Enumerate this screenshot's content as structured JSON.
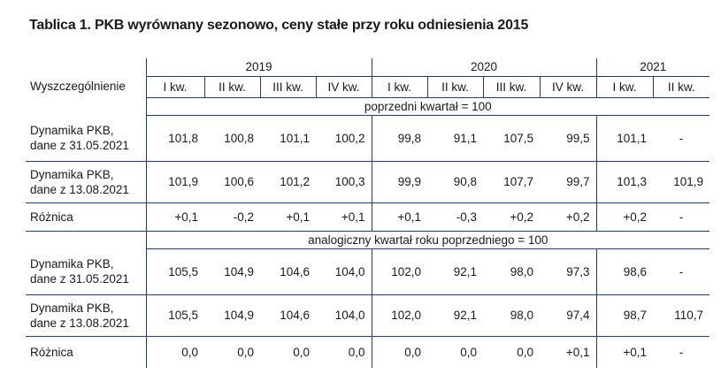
{
  "title": "Tablica 1. PKB wyrównany sezonowo, ceny stałe przy roku odniesienia 2015",
  "header": {
    "row_label": "Wyszczególnienie",
    "years": [
      "2019",
      "2020",
      "2021"
    ],
    "quarters": [
      "I kw.",
      "II kw.",
      "III kw.",
      "IV kw.",
      "I kw.",
      "II kw.",
      "III kw.",
      "IV kw.",
      "I kw.",
      "II kw."
    ]
  },
  "sections": [
    {
      "caption": "poprzedni kwartał = 100",
      "rows": [
        {
          "label1": "Dynamika PKB,",
          "label2": "dane z 31.05.2021",
          "values": [
            "101,8",
            "100,8",
            "101,1",
            "100,2",
            "99,8",
            "91,1",
            "107,5",
            "99,5",
            "101,1",
            "-"
          ]
        },
        {
          "label1": "Dynamika PKB,",
          "label2": "dane z 13.08.2021",
          "values": [
            "101,9",
            "100,6",
            "101,2",
            "100,3",
            "99,9",
            "90,8",
            "107,7",
            "99,7",
            "101,3",
            "101,9"
          ]
        },
        {
          "label1": "Różnica",
          "label2": "",
          "values": [
            "+0,1",
            "-0,2",
            "+0,1",
            "+0,1",
            "+0,1",
            "-0,3",
            "+0,2",
            "+0,2",
            "+0,2",
            "-"
          ]
        }
      ]
    },
    {
      "caption": "analogiczny kwartał roku poprzedniego = 100",
      "rows": [
        {
          "label1": "Dynamika PKB,",
          "label2": "dane z 31.05.2021",
          "values": [
            "105,5",
            "104,9",
            "104,6",
            "104,0",
            "102,0",
            "92,1",
            "98,0",
            "97,3",
            "98,6",
            "-"
          ]
        },
        {
          "label1": "Dynamika PKB,",
          "label2": "dane z 13.08.2021",
          "values": [
            "105,5",
            "104,9",
            "104,6",
            "104,0",
            "102,0",
            "92,1",
            "98,0",
            "97,4",
            "98,7",
            "110,7"
          ]
        },
        {
          "label1": "Różnica",
          "label2": "",
          "values": [
            "0,0",
            "0,0",
            "0,0",
            "0,0",
            "0,0",
            "0,0",
            "0,0",
            "+0,1",
            "+0,1",
            "-"
          ]
        }
      ]
    }
  ],
  "colors": {
    "rule": "#1f3c8c",
    "text": "#1a1a1a"
  }
}
